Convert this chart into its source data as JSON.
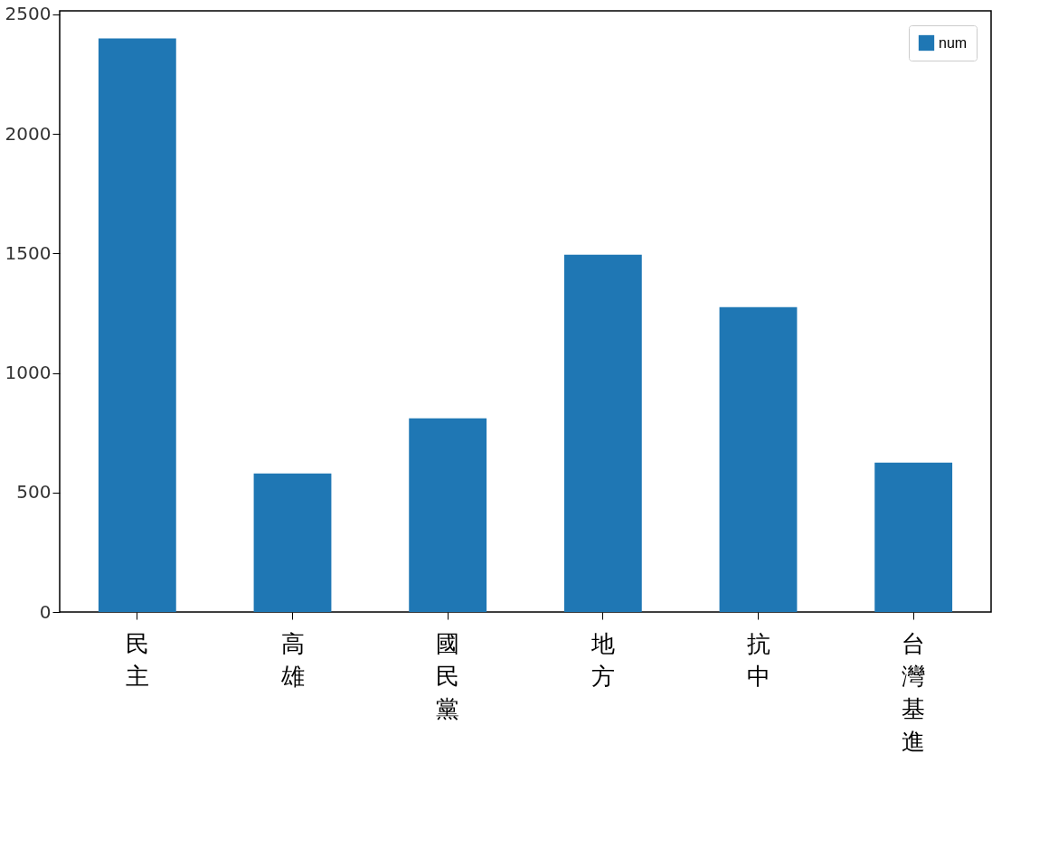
{
  "chart_data": {
    "type": "bar",
    "categories": [
      "民主",
      "高雄",
      "國民黨",
      "地方",
      "抗中",
      "台灣基進"
    ],
    "series": [
      {
        "name": "num",
        "color": "#1f77b4",
        "values": [
          2400,
          580,
          810,
          1495,
          1275,
          625
        ]
      }
    ],
    "ylim": [
      0,
      2515
    ],
    "yticks": [
      0,
      500,
      1000,
      1500,
      2000,
      2500
    ],
    "grid": false,
    "legend": "top right"
  }
}
